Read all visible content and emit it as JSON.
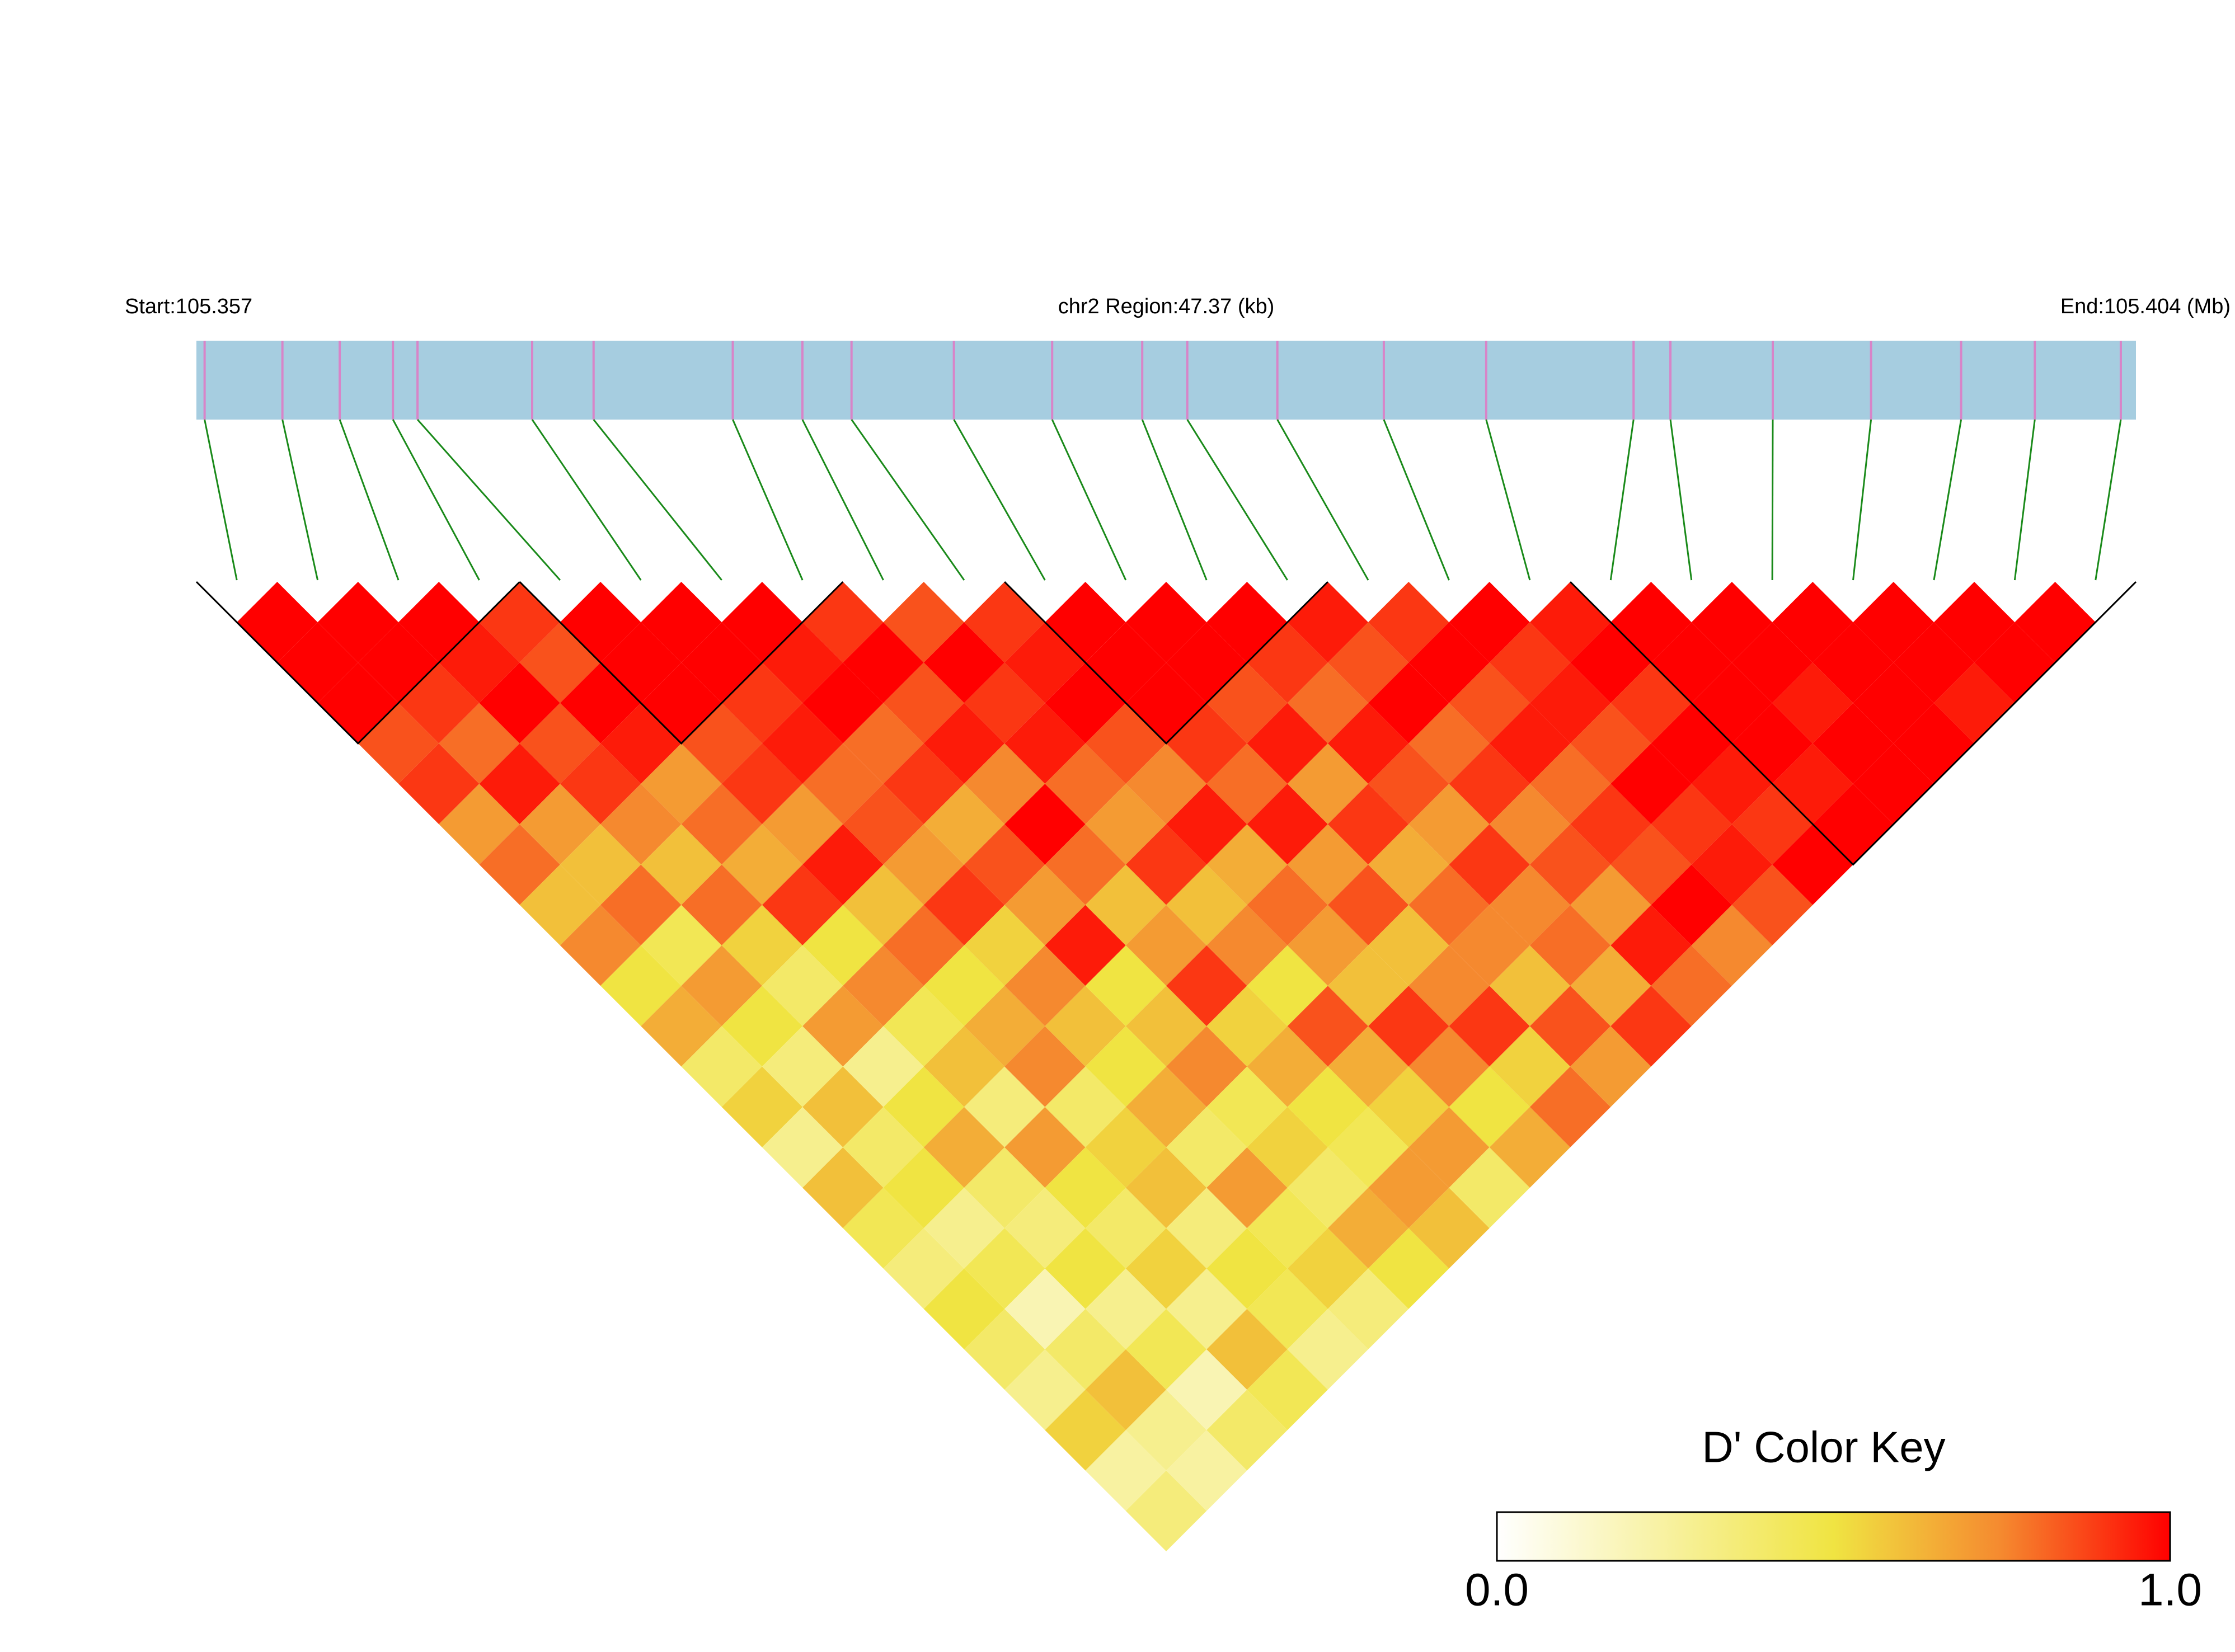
{
  "chart_data": {
    "type": "ld-heatmap",
    "start_label": "Start:105.357",
    "region_label": "chr2 Region:47.37 (kb)",
    "end_label": "End:105.404 (Mb)",
    "xlim": [
      105.357,
      105.40437
    ],
    "positions": [
      105.3572,
      105.3591,
      105.3605,
      105.3618,
      105.3624,
      105.3652,
      105.3667,
      105.3701,
      105.3718,
      105.373,
      105.3755,
      105.3779,
      105.3801,
      105.3812,
      105.3834,
      105.386,
      105.3885,
      105.3921,
      105.393,
      105.3955,
      105.3979,
      105.4001,
      105.4019,
      105.404
    ],
    "dprime": [
      [
        1,
        1,
        1,
        0.85,
        0.9,
        0.7,
        0.8,
        0.6,
        0.75,
        0.5,
        0.65,
        0.4,
        0.55,
        0.3,
        0.6,
        0.45,
        0.35,
        0.5,
        0.4,
        0.3,
        0.55,
        0.25,
        0.35
      ],
      [
        1,
        1,
        0.9,
        0.8,
        0.95,
        0.7,
        0.6,
        0.8,
        0.45,
        0.7,
        0.5,
        0.35,
        0.6,
        0.4,
        0.5,
        0.3,
        0.45,
        0.2,
        0.4,
        0.6,
        0.3,
        0.25
      ],
      [
        1,
        0.95,
        1,
        0.85,
        0.9,
        0.75,
        0.6,
        0.8,
        0.55,
        0.4,
        0.7,
        0.3,
        0.5,
        0.65,
        0.4,
        0.35,
        0.5,
        0.3,
        0.45,
        0.2,
        0.4
      ],
      [
        0.9,
        0.85,
        1,
        0.95,
        0.7,
        0.8,
        0.65,
        0.9,
        0.5,
        0.75,
        0.45,
        0.6,
        0.35,
        0.7,
        0.5,
        0.4,
        0.55,
        0.3,
        0.6,
        0.45
      ],
      [
        1,
        1,
        1,
        0.85,
        0.9,
        0.7,
        0.95,
        0.6,
        0.8,
        0.5,
        0.65,
        0.75,
        0.4,
        0.55,
        0.6,
        0.35,
        0.5,
        0.45,
        0.3
      ],
      [
        1,
        1,
        0.9,
        0.95,
        0.8,
        0.85,
        0.7,
        0.9,
        0.55,
        0.75,
        0.6,
        0.5,
        0.65,
        0.4,
        0.7,
        0.45,
        0.55,
        0.35
      ],
      [
        1,
        0.95,
        1,
        0.8,
        0.9,
        0.65,
        0.85,
        0.7,
        0.95,
        0.5,
        0.6,
        0.75,
        0.45,
        0.55,
        0.4,
        0.65,
        0.5
      ],
      [
        0.9,
        1,
        0.85,
        0.95,
        0.75,
        1,
        0.8,
        0.6,
        0.7,
        0.9,
        0.55,
        0.65,
        0.5,
        0.45,
        0.7,
        0.6
      ],
      [
        0.85,
        1,
        0.9,
        0.95,
        0.8,
        0.7,
        0.9,
        0.6,
        0.75,
        0.5,
        0.85,
        0.65,
        0.55,
        0.7,
        0.4
      ],
      [
        0.9,
        0.95,
        1,
        0.85,
        0.75,
        0.95,
        0.65,
        0.8,
        0.7,
        0.6,
        0.9,
        0.75,
        0.5,
        0.65
      ],
      [
        1,
        1,
        1,
        0.9,
        0.8,
        0.95,
        0.7,
        0.85,
        0.6,
        0.75,
        0.9,
        0.55,
        0.8
      ],
      [
        1,
        1,
        0.85,
        0.95,
        0.7,
        0.9,
        0.65,
        0.8,
        0.75,
        0.6,
        0.85,
        0.7
      ],
      [
        1,
        0.9,
        0.8,
        0.95,
        0.85,
        0.7,
        0.9,
        0.75,
        0.8,
        0.65,
        0.9
      ],
      [
        0.95,
        0.85,
        1,
        0.8,
        0.9,
        0.75,
        0.85,
        0.7,
        0.95,
        0.8
      ],
      [
        0.9,
        1,
        0.85,
        0.95,
        0.8,
        0.9,
        0.85,
        1,
        0.75
      ],
      [
        1,
        0.9,
        0.95,
        0.85,
        1,
        0.9,
        0.95,
        0.85
      ],
      [
        0.95,
        1,
        0.9,
        1,
        0.95,
        0.9,
        1
      ],
      [
        1,
        1,
        1,
        1,
        0.95,
        1
      ],
      [
        1,
        1,
        0.95,
        1,
        1
      ],
      [
        1,
        1,
        1,
        1
      ],
      [
        1,
        1,
        0.95
      ],
      [
        1,
        1
      ],
      [
        1
      ]
    ],
    "blocks": [
      [
        0,
        3
      ],
      [
        4,
        7
      ],
      [
        10,
        13
      ],
      [
        17,
        23
      ]
    ],
    "colorscale": [
      [
        0,
        "#ffffff"
      ],
      [
        0.5,
        "#f0e442"
      ],
      [
        0.75,
        "#f5892f"
      ],
      [
        1,
        "#ff0000"
      ]
    ],
    "bar_color": "#a6cde0",
    "snp_line_color": "#d884c8",
    "connector_color": "#1a8a1a",
    "key_title": "D' Color Key",
    "key_ticks": [
      {
        "value": 0,
        "label": "0.0"
      },
      {
        "value": 1,
        "label": "1.0"
      }
    ]
  }
}
